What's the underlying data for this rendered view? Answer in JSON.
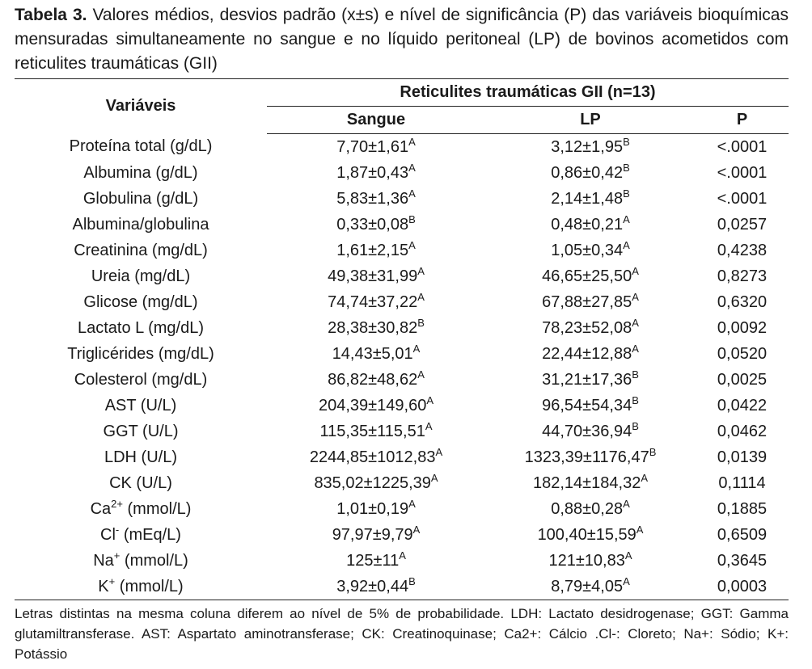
{
  "caption": {
    "label": "Tabela 3.",
    "text": "Valores médios, desvios padrão (x±s) e nível de significância (P) das variáveis bioquímicas mensuradas simultaneamente no sangue e no líquido peritoneal (LP) de bovinos acometidos com reticulites traumáticas (GII)"
  },
  "table": {
    "headers": {
      "variable": "Variáveis",
      "group": "Reticulites traumáticas GII (n=13)",
      "columns": [
        "Sangue",
        "LP",
        "P"
      ]
    },
    "rows": [
      {
        "variable": "Proteína total (g/dL)",
        "sangue": {
          "value": "7,70±1,61",
          "sup": "A"
        },
        "lp": {
          "value": "3,12±1,95",
          "sup": "B"
        },
        "p": "<.0001"
      },
      {
        "variable": "Albumina (g/dL)",
        "sangue": {
          "value": "1,87±0,43",
          "sup": "A"
        },
        "lp": {
          "value": "0,86±0,42",
          "sup": "B"
        },
        "p": "<.0001"
      },
      {
        "variable": "Globulina (g/dL)",
        "sangue": {
          "value": "5,83±1,36",
          "sup": "A"
        },
        "lp": {
          "value": "2,14±1,48",
          "sup": "B"
        },
        "p": "<.0001"
      },
      {
        "variable": "Albumina/globulina",
        "sangue": {
          "value": "0,33±0,08",
          "sup": "B"
        },
        "lp": {
          "value": "0,48±0,21",
          "sup": "A"
        },
        "p": "0,0257"
      },
      {
        "variable": "Creatinina (mg/dL)",
        "sangue": {
          "value": "1,61±2,15",
          "sup": "A"
        },
        "lp": {
          "value": "1,05±0,34",
          "sup": "A"
        },
        "p": "0,4238"
      },
      {
        "variable": "Ureia (mg/dL)",
        "sangue": {
          "value": "49,38±31,99",
          "sup": "A"
        },
        "lp": {
          "value": "46,65±25,50",
          "sup": "A"
        },
        "p": "0,8273"
      },
      {
        "variable": "Glicose (mg/dL)",
        "sangue": {
          "value": "74,74±37,22",
          "sup": "A"
        },
        "lp": {
          "value": "67,88±27,85",
          "sup": "A"
        },
        "p": "0,6320"
      },
      {
        "variable": "Lactato L (mg/dL)",
        "sangue": {
          "value": "28,38±30,82",
          "sup": "B"
        },
        "lp": {
          "value": "78,23±52,08",
          "sup": "A"
        },
        "p": "0,0092"
      },
      {
        "variable": "Triglicérides (mg/dL)",
        "sangue": {
          "value": "14,43±5,01",
          "sup": "A"
        },
        "lp": {
          "value": "22,44±12,88",
          "sup": "A"
        },
        "p": "0,0520"
      },
      {
        "variable": "Colesterol (mg/dL)",
        "sangue": {
          "value": "86,82±48,62",
          "sup": "A"
        },
        "lp": {
          "value": "31,21±17,36",
          "sup": "B"
        },
        "p": "0,0025"
      },
      {
        "variable": "AST (U/L)",
        "sangue": {
          "value": "204,39±149,60",
          "sup": "A"
        },
        "lp": {
          "value": "96,54±54,34",
          "sup": "B"
        },
        "p": "0,0422"
      },
      {
        "variable": "GGT (U/L)",
        "sangue": {
          "value": "115,35±115,51",
          "sup": "A"
        },
        "lp": {
          "value": "44,70±36,94",
          "sup": "B"
        },
        "p": "0,0462"
      },
      {
        "variable": "LDH (U/L)",
        "sangue": {
          "value": "2244,85±1012,83",
          "sup": "A"
        },
        "lp": {
          "value": "1323,39±1176,47",
          "sup": "B"
        },
        "p": "0,0139"
      },
      {
        "variable": "CK (U/L)",
        "sangue": {
          "value": "835,02±1225,39",
          "sup": "A"
        },
        "lp": {
          "value": "182,14±184,32",
          "sup": "A"
        },
        "p": "0,1114"
      },
      {
        "variable": {
          "base": "Ca",
          "sup": "2+",
          "unit": " (mmol/L)"
        },
        "sangue": {
          "value": "1,01±0,19",
          "sup": "A"
        },
        "lp": {
          "value": "0,88±0,28",
          "sup": "A"
        },
        "p": "0,1885"
      },
      {
        "variable": {
          "base": "Cl",
          "sup": "-",
          "unit": " (mEq/L)"
        },
        "sangue": {
          "value": "97,97±9,79",
          "sup": "A"
        },
        "lp": {
          "value": "100,40±15,59",
          "sup": "A"
        },
        "p": "0,6509"
      },
      {
        "variable": {
          "base": "Na",
          "sup": "+",
          "unit": " (mmol/L)"
        },
        "sangue": {
          "value": "125±11",
          "sup": "A"
        },
        "lp": {
          "value": "121±10,83",
          "sup": "A"
        },
        "p": "0,3645"
      },
      {
        "variable": {
          "base": "K",
          "sup": "+",
          "unit": " (mmol/L)"
        },
        "sangue": {
          "value": "3,92±0,44",
          "sup": "B"
        },
        "lp": {
          "value": "8,79±4,05",
          "sup": "A"
        },
        "p": "0,0003"
      }
    ]
  },
  "footnote": "Letras distintas na mesma coluna diferem ao nível de 5% de probabilidade. LDH: Lactato desidrogenase; GGT: Gamma glutamiltransferase. AST: Aspartato aminotransferase; CK: Creatinoquinase; Ca2+: Cálcio .Cl-: Cloreto; Na+: Sódio; K+: Potássio"
}
